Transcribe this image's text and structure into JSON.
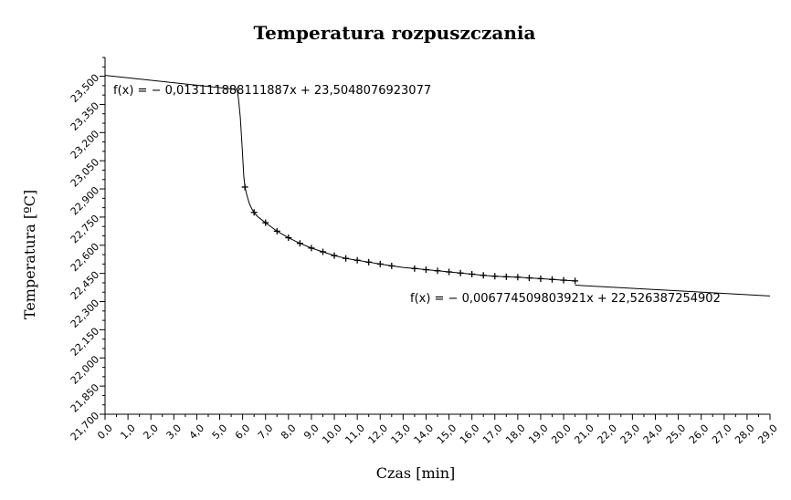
{
  "chart_data": {
    "type": "line",
    "title": "Temperatura rozpuszczania",
    "xlabel": "Czas [min]",
    "ylabel": "Temperatura [ºC]",
    "xlim": [
      0,
      29
    ],
    "ylim": [
      21.7,
      23.6
    ],
    "x_ticks": [
      0,
      1,
      2,
      3,
      4,
      5,
      6,
      7,
      8,
      9,
      10,
      11,
      12,
      13,
      14,
      15,
      16,
      17,
      18,
      19,
      20,
      21,
      22,
      23,
      24,
      25,
      26,
      27,
      28,
      29
    ],
    "x_tick_labels": [
      "0,0",
      "1,0",
      "2,0",
      "3,0",
      "4,0",
      "5,0",
      "6,0",
      "7,0",
      "8,0",
      "9,0",
      "10,0",
      "11,0",
      "12,0",
      "13,0",
      "14,0",
      "15,0",
      "16,0",
      "17,0",
      "18,0",
      "19,0",
      "20,0",
      "21,0",
      "22,0",
      "23,0",
      "24,0",
      "25,0",
      "26,0",
      "27,0",
      "28,0",
      "29,0"
    ],
    "y_ticks": [
      21.7,
      21.85,
      22.0,
      22.15,
      22.3,
      22.45,
      22.6,
      22.75,
      22.9,
      23.05,
      23.2,
      23.35,
      23.5
    ],
    "y_tick_labels": [
      "21,700",
      "21,850",
      "22,000",
      "22,150",
      "22,300",
      "22,450",
      "22,600",
      "22,750",
      "22,900",
      "23,050",
      "23,200",
      "23,350",
      "23,500"
    ],
    "grid": false,
    "series": [
      {
        "curve": [
          [
            5.75,
            23.44
          ],
          [
            5.82,
            23.38
          ],
          [
            5.9,
            23.28
          ],
          [
            5.98,
            23.12
          ],
          [
            6.05,
            22.97
          ],
          [
            6.1,
            22.91
          ],
          [
            6.2,
            22.86
          ],
          [
            6.3,
            22.82
          ],
          [
            6.4,
            22.794
          ],
          [
            6.5,
            22.775
          ],
          [
            6.6,
            22.76
          ],
          [
            6.7,
            22.748
          ],
          [
            7.0,
            22.72
          ],
          [
            7.5,
            22.675
          ],
          [
            8.0,
            22.64
          ],
          [
            8.5,
            22.61
          ],
          [
            9.0,
            22.585
          ],
          [
            9.5,
            22.565
          ],
          [
            10.0,
            22.545
          ],
          [
            10.5,
            22.53
          ],
          [
            11.0,
            22.52
          ],
          [
            11.5,
            22.51
          ],
          [
            12.0,
            22.5
          ],
          [
            12.5,
            22.49
          ],
          [
            13.0,
            22.482
          ],
          [
            13.5,
            22.476
          ],
          [
            14.0,
            22.47
          ],
          [
            14.5,
            22.464
          ],
          [
            15.0,
            22.458
          ],
          [
            15.5,
            22.452
          ],
          [
            16.0,
            22.446
          ],
          [
            16.5,
            22.44
          ],
          [
            17.0,
            22.435
          ],
          [
            17.5,
            22.432
          ],
          [
            18.0,
            22.43
          ],
          [
            18.5,
            22.426
          ],
          [
            19.0,
            22.422
          ],
          [
            19.5,
            22.418
          ],
          [
            20.0,
            22.414
          ],
          [
            20.5,
            22.41
          ]
        ],
        "markers": [
          [
            6.1,
            22.91
          ],
          [
            6.5,
            22.775
          ],
          [
            7.0,
            22.72
          ],
          [
            7.5,
            22.675
          ],
          [
            8.0,
            22.64
          ],
          [
            8.5,
            22.61
          ],
          [
            9.0,
            22.585
          ],
          [
            9.5,
            22.565
          ],
          [
            10.0,
            22.545
          ],
          [
            10.5,
            22.53
          ],
          [
            11.0,
            22.52
          ],
          [
            11.5,
            22.51
          ],
          [
            12.0,
            22.5
          ],
          [
            12.5,
            22.49
          ],
          [
            13.5,
            22.476
          ],
          [
            14.0,
            22.47
          ],
          [
            14.5,
            22.464
          ],
          [
            15.0,
            22.458
          ],
          [
            15.5,
            22.452
          ],
          [
            16.0,
            22.446
          ],
          [
            16.5,
            22.44
          ],
          [
            17.0,
            22.435
          ],
          [
            17.5,
            22.432
          ],
          [
            18.0,
            22.43
          ],
          [
            18.5,
            22.426
          ],
          [
            19.0,
            22.422
          ],
          [
            19.5,
            22.418
          ],
          [
            20.0,
            22.414
          ],
          [
            20.5,
            22.41
          ]
        ]
      }
    ],
    "fits": [
      {
        "label": "f(x) = − 0,013111888111887x + 23,5048076923077",
        "slope": -0.013111888111887,
        "intercept": 23.5048076923077,
        "x_range": [
          0,
          5.75
        ]
      },
      {
        "label": "f(x) = − 0,006774509803921x + 22,526387254902",
        "slope": -0.006774509803921,
        "intercept": 22.526387254902,
        "x_range": [
          20.5,
          29
        ]
      }
    ]
  }
}
